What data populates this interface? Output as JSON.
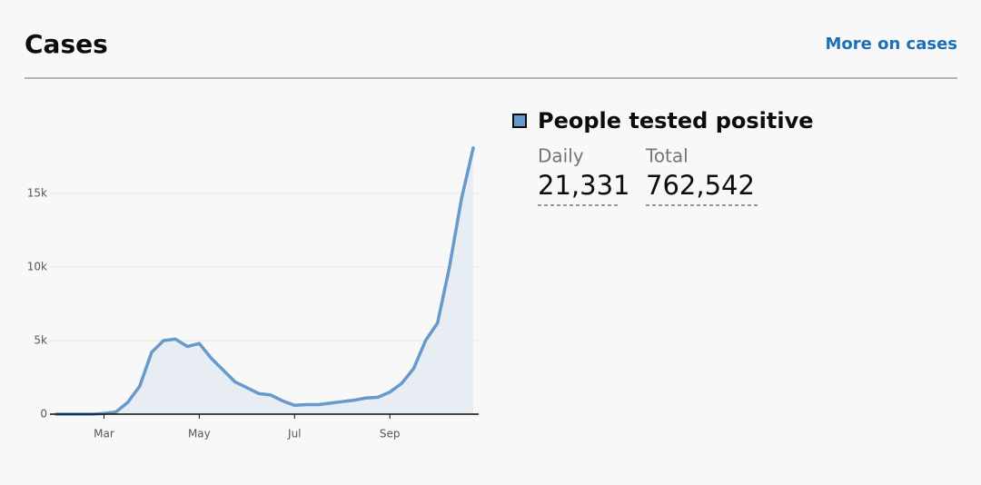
{
  "header": {
    "title": "Cases",
    "link": "More on cases"
  },
  "summary": {
    "heading": "People tested positive",
    "items": [
      {
        "label": "Daily",
        "value": "21,331"
      },
      {
        "label": "Total",
        "value": "762,542"
      }
    ]
  },
  "chart_data": {
    "type": "line",
    "categories": [
      null,
      null,
      null,
      null,
      "Mar",
      null,
      null,
      null,
      null,
      null,
      null,
      null,
      "May",
      null,
      null,
      null,
      null,
      null,
      null,
      null,
      "Jul",
      null,
      null,
      null,
      null,
      null,
      null,
      null,
      "Sep",
      null,
      null,
      null,
      null,
      null,
      null,
      null
    ],
    "series": [
      {
        "color": "#6699cc",
        "values": [
          0,
          0,
          0,
          0,
          50,
          150,
          800,
          1900,
          4200,
          5000,
          5100,
          4600,
          4800,
          3800,
          3000,
          2200,
          1800,
          1400,
          1300,
          900,
          600,
          650,
          650,
          750,
          850,
          950,
          1100,
          1150,
          1500,
          2100,
          3100,
          5000,
          6200,
          10000,
          14600,
          18100
        ]
      }
    ],
    "ylim": [
      0,
      20000
    ],
    "yticks": [
      0,
      {
        "value": 5000,
        "label": "5k"
      },
      {
        "value": 10000,
        "label": "10k"
      },
      {
        "value": 15000,
        "label": "15k"
      }
    ],
    "grid": true
  }
}
